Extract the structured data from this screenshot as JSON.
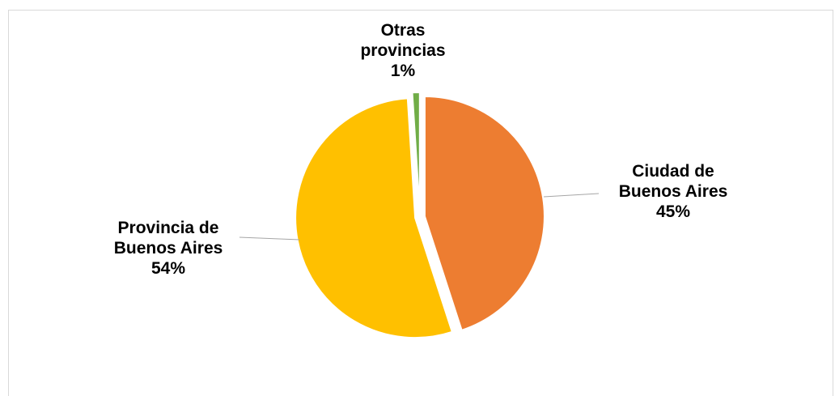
{
  "chart_data": {
    "type": "pie",
    "title": "",
    "slices": [
      {
        "label_lines": [
          "Ciudad de",
          "Buenos Aires"
        ],
        "percent_label": "45%",
        "value": 45,
        "color": "#ED7D31"
      },
      {
        "label_lines": [
          "Provincia de",
          "Buenos Aires"
        ],
        "percent_label": "54%",
        "value": 54,
        "color": "#FFC000"
      },
      {
        "label_lines": [
          "Otras",
          "provincias"
        ],
        "percent_label": "1%",
        "value": 1,
        "color": "#70AD47"
      }
    ],
    "legend": "none",
    "data_labels": "outside with leader lines"
  }
}
